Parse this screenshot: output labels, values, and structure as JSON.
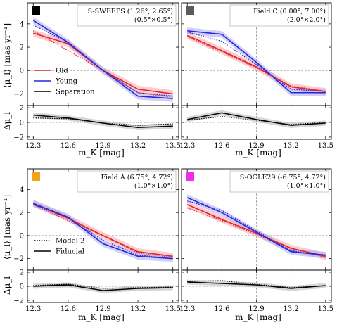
{
  "colors": {
    "old": "#e8202a",
    "young": "#2626e0",
    "separation": "#000000",
    "old_band": "#f4a6a6",
    "young_band": "#a9a9ee",
    "sep_band": "#b4b4b4"
  },
  "axis_labels": {
    "x": "m_K [mag]",
    "y_top": "⟨μ_l⟩ [mas yr⁻¹]",
    "y_bottom": "Δμ_l"
  },
  "legend_top": [
    {
      "label": "Old",
      "color": "#e8202a",
      "style": "solid"
    },
    {
      "label": "Young",
      "color": "#2626e0",
      "style": "solid"
    },
    {
      "label": "Separation",
      "color": "#000000",
      "style": "solid"
    }
  ],
  "legend_bottom": [
    {
      "label": "Model 2",
      "style": "dotted"
    },
    {
      "label": "Fiducial",
      "style": "solid"
    }
  ],
  "chart_data": [
    {
      "type": "line",
      "annotation": [
        "S-SWEEPS (1.26°, 2.65°)",
        "(0.5°×0.5°)"
      ],
      "swatch": "#000000",
      "x": [
        12.3,
        12.6,
        12.9,
        13.2,
        13.5
      ],
      "xlim": [
        12.25,
        13.55
      ],
      "ylim": [
        -3.0,
        5.8
      ],
      "ylim_diff": [
        -2.3,
        2.3
      ],
      "old_fiducial": [
        3.2,
        2.3,
        0.0,
        -1.6,
        -2.0
      ],
      "young_fiducial": [
        4.3,
        2.4,
        0.0,
        -2.2,
        -2.4
      ],
      "old_model2": [
        3.4,
        1.7,
        0.0,
        -1.9,
        -2.3
      ],
      "young_model2": [
        3.9,
        2.4,
        0.0,
        -1.9,
        -2.2
      ],
      "sep_fiducial": [
        1.0,
        0.6,
        -0.1,
        -0.7,
        -0.5
      ],
      "sep_model2": [
        0.6,
        0.5,
        -0.1,
        -0.4,
        -0.2
      ]
    },
    {
      "type": "line",
      "annotation": [
        "Field C (0.00°, 7.00°)",
        "(2.0°×2.0°)"
      ],
      "swatch": "#5c5c5c",
      "x": [
        12.3,
        12.6,
        12.9,
        13.2,
        13.5
      ],
      "xlim": [
        12.25,
        13.55
      ],
      "ylim": [
        -3.0,
        5.8
      ],
      "ylim_diff": [
        -2.3,
        2.3
      ],
      "old_fiducial": [
        3.0,
        1.7,
        0.3,
        -1.4,
        -1.8
      ],
      "young_fiducial": [
        3.4,
        3.1,
        0.7,
        -1.9,
        -1.9
      ],
      "old_model2": [
        2.9,
        1.6,
        0.2,
        -1.3,
        -1.8
      ],
      "young_model2": [
        3.3,
        2.5,
        0.5,
        -1.6,
        -1.8
      ],
      "sep_fiducial": [
        0.4,
        1.3,
        0.4,
        -0.4,
        -0.1
      ],
      "sep_model2": [
        0.3,
        0.8,
        0.3,
        -0.3,
        0.0
      ]
    },
    {
      "type": "line",
      "annotation": [
        "Field A (6.75°, 4.72°)",
        "(1.0°×1.0°)"
      ],
      "swatch": "#f4a21c",
      "x": [
        12.3,
        12.6,
        12.9,
        13.2,
        13.5
      ],
      "xlim": [
        12.25,
        13.55
      ],
      "ylim": [
        -3.0,
        5.8
      ],
      "ylim_diff": [
        -2.3,
        2.3
      ],
      "old_fiducial": [
        2.8,
        1.5,
        0.0,
        -1.4,
        -1.8
      ],
      "young_fiducial": [
        2.8,
        1.6,
        -0.7,
        -1.8,
        -2.0
      ],
      "old_model2": [
        2.7,
        1.3,
        0.0,
        -1.5,
        -1.9
      ],
      "young_model2": [
        2.7,
        1.5,
        -0.4,
        -1.7,
        -2.0
      ],
      "sep_fiducial": [
        0.0,
        0.2,
        -0.6,
        -0.3,
        -0.2
      ],
      "sep_model2": [
        0.1,
        0.3,
        -0.3,
        -0.2,
        -0.1
      ]
    },
    {
      "type": "line",
      "annotation": [
        "S-OGLE29 (-6.75°, 4.72°)",
        "(1.0°×1.0°)"
      ],
      "swatch": "#ee2ee8",
      "x": [
        12.3,
        12.6,
        12.9,
        13.2,
        13.5
      ],
      "xlim": [
        12.25,
        13.55
      ],
      "ylim": [
        -3.0,
        5.8
      ],
      "ylim_diff": [
        -2.3,
        2.3
      ],
      "old_fiducial": [
        2.7,
        1.4,
        0.2,
        -1.1,
        -1.8
      ],
      "young_fiducial": [
        3.3,
        2.0,
        0.3,
        -1.4,
        -1.7
      ],
      "old_model2": [
        2.4,
        1.3,
        0.1,
        -1.1,
        -1.9
      ],
      "young_model2": [
        3.0,
        2.2,
        0.4,
        -1.3,
        -1.8
      ],
      "sep_fiducial": [
        0.6,
        0.4,
        0.2,
        -0.3,
        0.1
      ],
      "sep_model2": [
        0.7,
        0.8,
        0.3,
        -0.2,
        0.1
      ]
    }
  ]
}
